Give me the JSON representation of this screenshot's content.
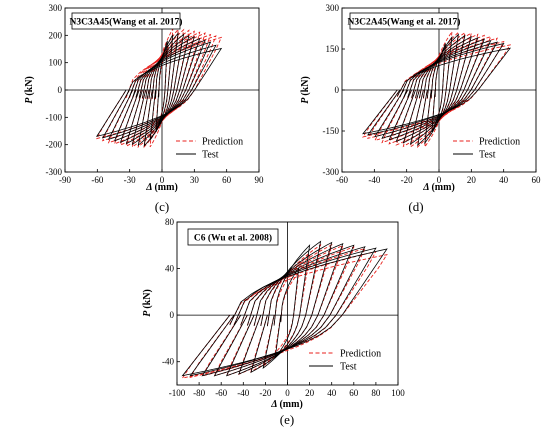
{
  "figure": {
    "panels": [
      {
        "id": "c",
        "caption": "(c)",
        "chart_data": {
          "type": "line",
          "title": "N3C3A45(Wang et al. 2017)",
          "xlabel": "Δ",
          "xunit": "(mm)",
          "ylabel": "P",
          "yunit": "(kN)",
          "xlim": [
            -90,
            90
          ],
          "ylim": [
            -300,
            300
          ],
          "xticks": [
            -90,
            -60,
            -30,
            0,
            30,
            60,
            90
          ],
          "yticks": [
            -300,
            -200,
            -100,
            0,
            100,
            200,
            300
          ],
          "legend": {
            "position": "bottom-right",
            "entries": [
              "Prediction",
              "Test"
            ]
          },
          "series": [
            {
              "name": "Prediction",
              "color": "#e8201c",
              "dash": true,
              "envelope_pos": [
                [
                  0,
                  0
                ],
                [
                  5,
                  150
                ],
                [
                  10,
                  215
                ],
                [
                  25,
                  210
                ],
                [
                  40,
                  200
                ],
                [
                  55,
                  185
                ],
                [
                  65,
                  160
                ]
              ],
              "envelope_neg": [
                [
                  0,
                  0
                ],
                [
                  -5,
                  -130
                ],
                [
                  -10,
                  -200
                ],
                [
                  -30,
                  -200
                ],
                [
                  -50,
                  -185
                ],
                [
                  -65,
                  -165
                ]
              ]
            },
            {
              "name": "Test",
              "color": "#000000",
              "dash": false,
              "envelope_pos": [
                [
                  0,
                  0
                ],
                [
                  5,
                  180
                ],
                [
                  12,
                  210
                ],
                [
                  30,
                  195
                ],
                [
                  45,
                  175
                ],
                [
                  58,
                  145
                ]
              ],
              "envelope_neg": [
                [
                  0,
                  0
                ],
                [
                  -5,
                  -150
                ],
                [
                  -15,
                  -205
                ],
                [
                  -35,
                  -195
                ],
                [
                  -55,
                  -175
                ],
                [
                  -70,
                  -160
                ]
              ]
            }
          ],
          "cycle_amplitudes": [
            5,
            10,
            15,
            20,
            25,
            30,
            35,
            40,
            45,
            50,
            55
          ]
        }
      },
      {
        "id": "d",
        "caption": "(d)",
        "chart_data": {
          "type": "line",
          "title": "N3C2A45(Wang et al. 2017)",
          "xlabel": "Δ",
          "xunit": "(mm)",
          "ylabel": "P",
          "yunit": "(kN)",
          "xlim": [
            -60,
            60
          ],
          "ylim": [
            -300,
            300
          ],
          "xticks": [
            -60,
            -40,
            -20,
            0,
            20,
            40,
            60
          ],
          "yticks": [
            -300,
            -150,
            0,
            150,
            300
          ],
          "legend": {
            "position": "bottom-right",
            "entries": [
              "Prediction",
              "Test"
            ]
          },
          "series": [
            {
              "name": "Prediction",
              "color": "#e8201c",
              "dash": true,
              "envelope_pos": [
                [
                  0,
                  0
                ],
                [
                  4,
                  160
                ],
                [
                  8,
                  205
                ],
                [
                  20,
                  200
                ],
                [
                  35,
                  185
                ],
                [
                  47,
                  150
                ]
              ],
              "envelope_neg": [
                [
                  0,
                  0
                ],
                [
                  -4,
                  -140
                ],
                [
                  -8,
                  -200
                ],
                [
                  -20,
                  -200
                ],
                [
                  -35,
                  -185
                ],
                [
                  -47,
                  -165
                ]
              ]
            },
            {
              "name": "Test",
              "color": "#000000",
              "dash": false,
              "envelope_pos": [
                [
                  0,
                  0
                ],
                [
                  4,
                  170
                ],
                [
                  10,
                  205
                ],
                [
                  25,
                  190
                ],
                [
                  40,
                  170
                ],
                [
                  47,
                  140
                ]
              ],
              "envelope_neg": [
                [
                  0,
                  0
                ],
                [
                  -4,
                  -150
                ],
                [
                  -10,
                  -205
                ],
                [
                  -25,
                  -190
                ],
                [
                  -40,
                  -170
                ],
                [
                  -47,
                  -160
                ]
              ]
            }
          ],
          "cycle_amplitudes": [
            4,
            8,
            12,
            16,
            20,
            24,
            28,
            32,
            36,
            40,
            44
          ]
        }
      },
      {
        "id": "e",
        "caption": "(e)",
        "chart_data": {
          "type": "line",
          "title": "C6 (Wu et al. 2008)",
          "xlabel": "Δ",
          "xunit": "(mm)",
          "ylabel": "P",
          "yunit": "(kN)",
          "xlim": [
            -100,
            100
          ],
          "ylim": [
            -60,
            80
          ],
          "xticks": [
            -100,
            -80,
            -60,
            -40,
            -20,
            0,
            20,
            40,
            60,
            80,
            100
          ],
          "yticks": [
            -40,
            0,
            40,
            80
          ],
          "legend": {
            "position": "bottom-right",
            "entries": [
              "Prediction",
              "Test"
            ]
          },
          "series": [
            {
              "name": "Prediction",
              "color": "#e8201c",
              "dash": true,
              "envelope_pos": [
                [
                  0,
                  0
                ],
                [
                  10,
                  35
                ],
                [
                  25,
                  58
                ],
                [
                  45,
                  58
                ],
                [
                  70,
                  55
                ],
                [
                  90,
                  50
                ]
              ],
              "envelope_neg": [
                [
                  0,
                  0
                ],
                [
                  -10,
                  -30
                ],
                [
                  -25,
                  -45
                ],
                [
                  -50,
                  -50
                ],
                [
                  -75,
                  -50
                ],
                [
                  -95,
                  -52
                ]
              ]
            },
            {
              "name": "Test",
              "color": "#000000",
              "dash": false,
              "envelope_pos": [
                [
                  0,
                  0
                ],
                [
                  10,
                  40
                ],
                [
                  22,
                  64
                ],
                [
                  45,
                  62
                ],
                [
                  75,
                  58
                ],
                [
                  100,
                  56
                ]
              ],
              "envelope_neg": [
                [
                  0,
                  0
                ],
                [
                  -10,
                  -35
                ],
                [
                  -25,
                  -48
                ],
                [
                  -55,
                  -52
                ],
                [
                  -80,
                  -52
                ],
                [
                  -95,
                  -52
                ]
              ]
            }
          ],
          "cycle_amplitudes": [
            10,
            20,
            30,
            40,
            50,
            60,
            70,
            80,
            90
          ]
        }
      }
    ]
  }
}
